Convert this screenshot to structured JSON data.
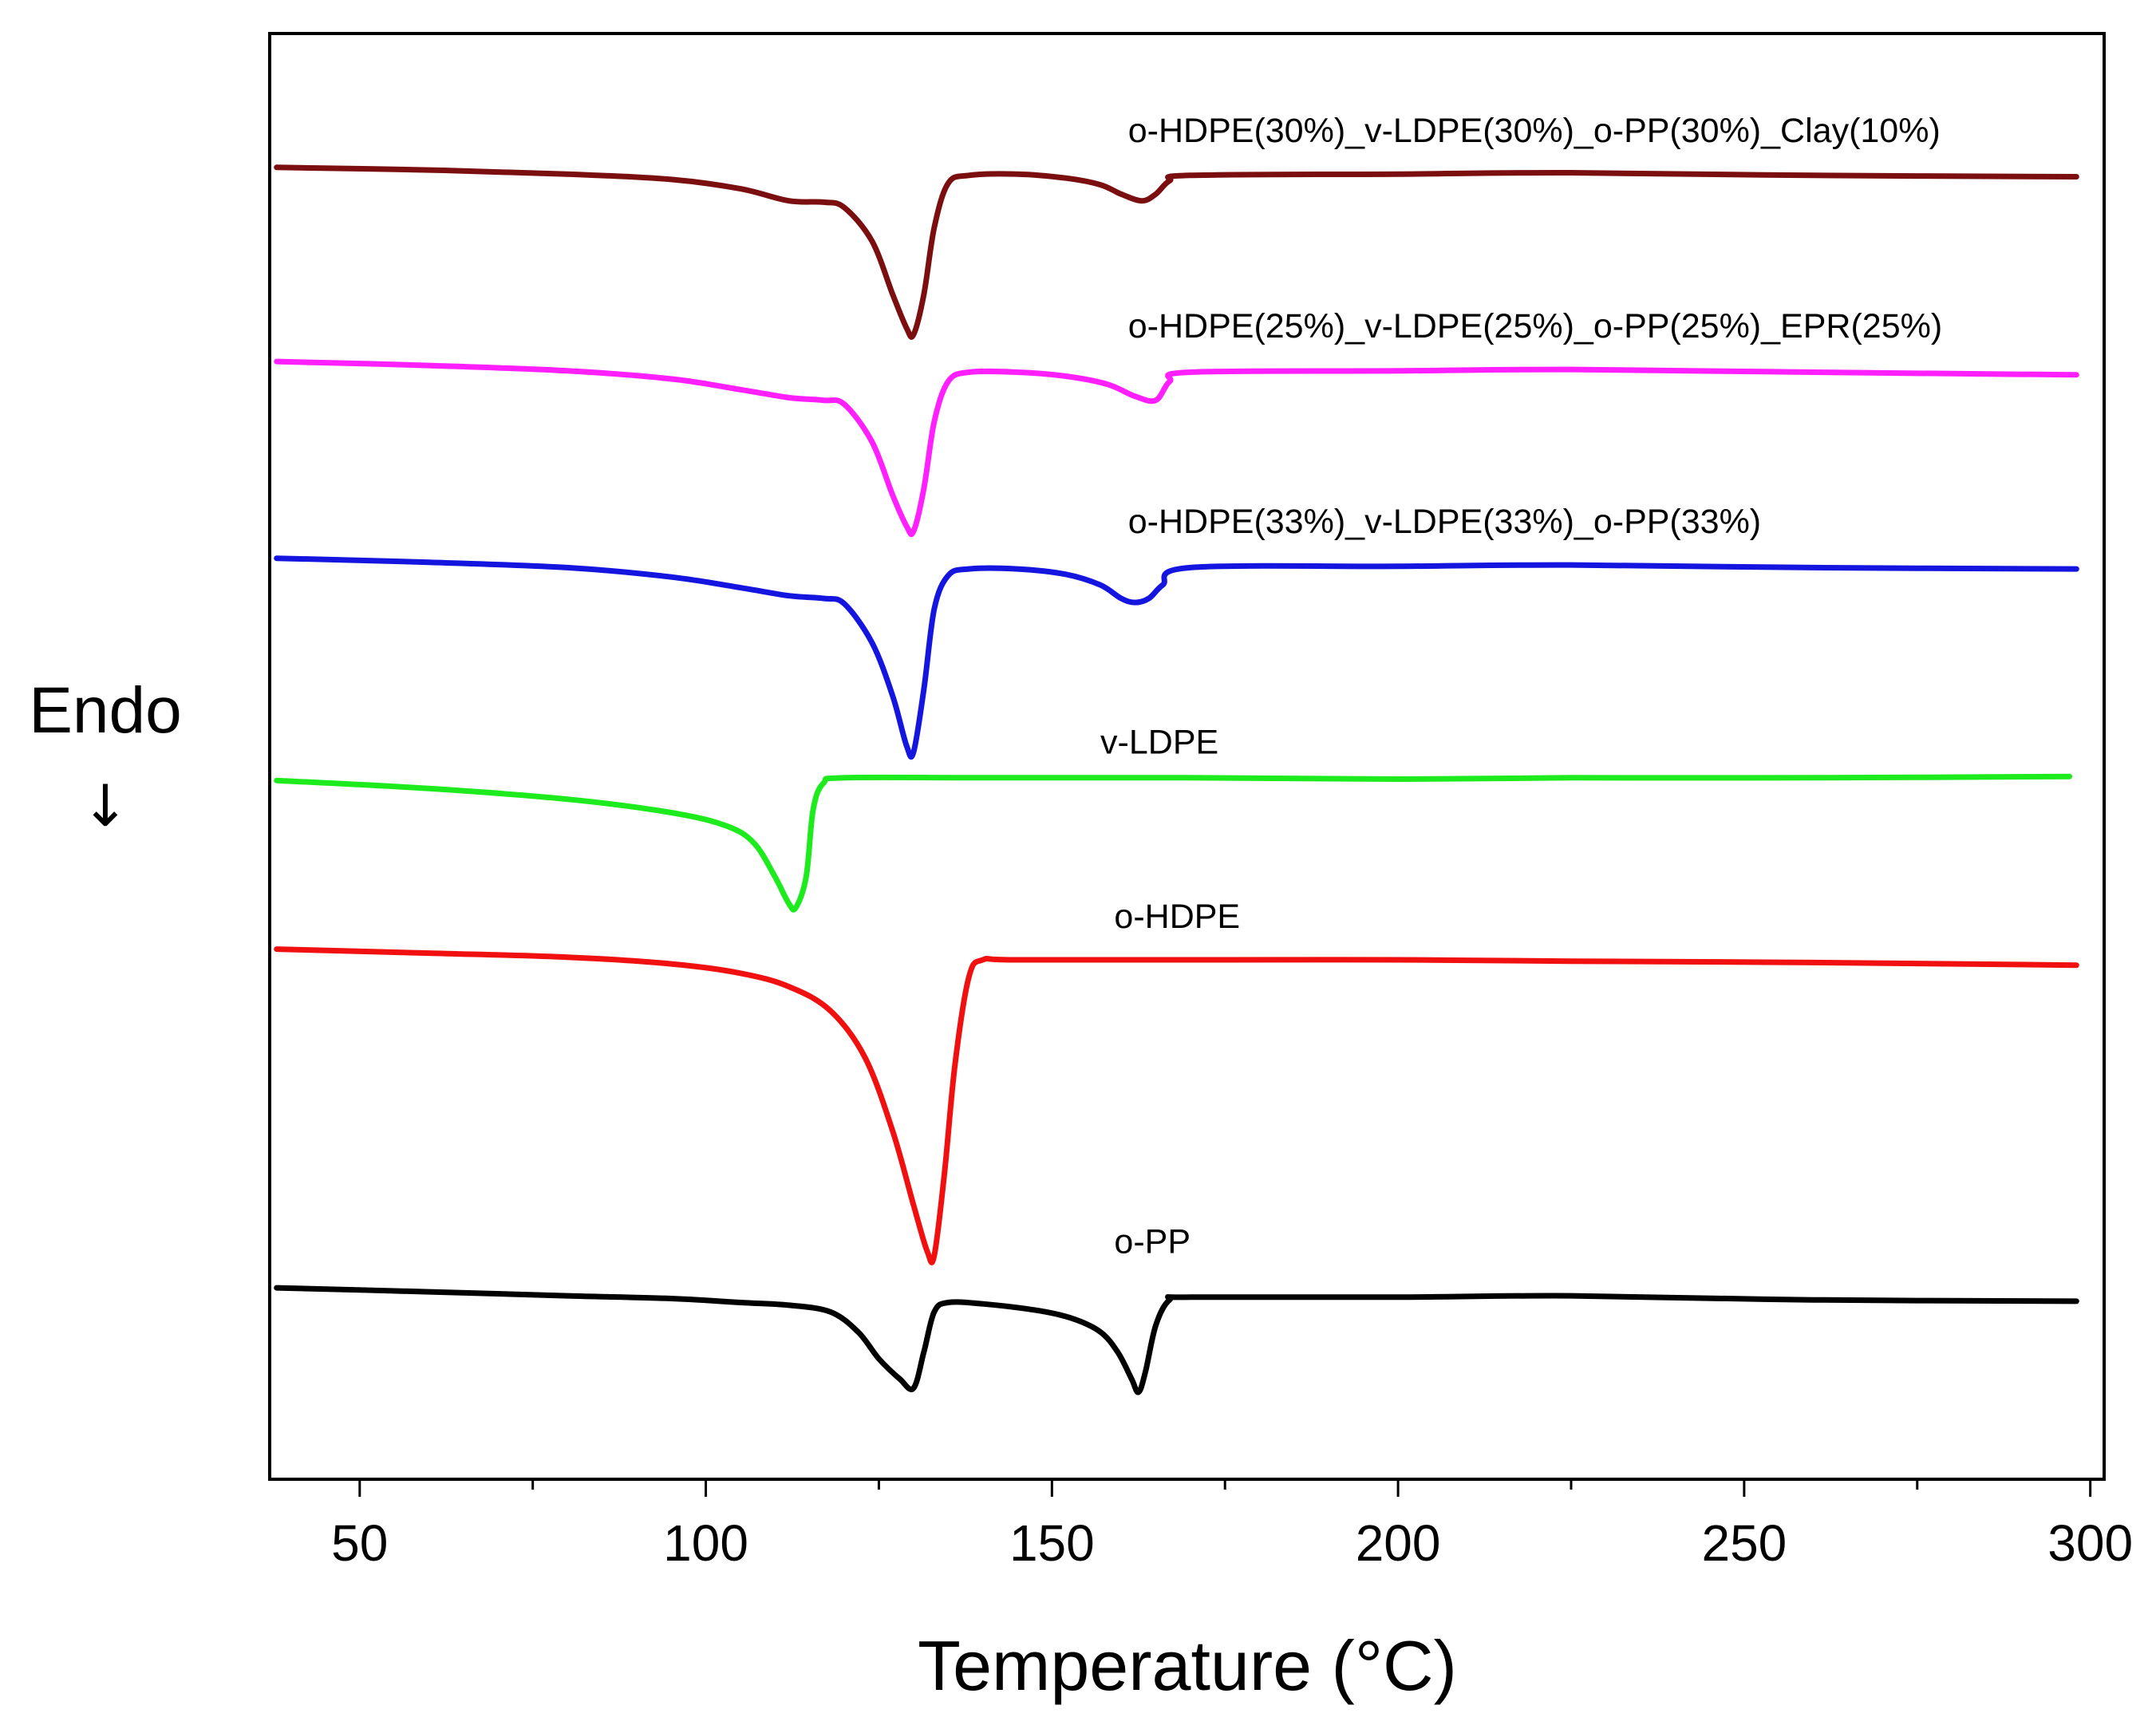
{
  "chart_data": {
    "type": "line",
    "title": "",
    "xlabel": "Temperature (°C)",
    "ylabel": "Endo",
    "ylabel_arrow": "↓",
    "xlim": [
      37,
      302
    ],
    "ylim": [
      -9.8,
      1.0
    ],
    "xticks": [
      50,
      100,
      150,
      200,
      250,
      300
    ],
    "xtick_labels": [
      "50",
      "100",
      "150",
      "200",
      "250",
      "300"
    ],
    "minor_xticks": [
      75,
      125,
      175,
      225,
      275
    ],
    "grid": false,
    "legend": "inline labels above each curve",
    "y_axis_ticks_visible": false,
    "series": [
      {
        "name": "o-HDPE(30%)_v-LDPE(30%)_o-PP(30%)_Clay(10%)",
        "color": "#7B0F0F",
        "label_at": [
          161,
          0.19
        ],
        "points": [
          [
            38,
            0
          ],
          [
            60,
            -0.02
          ],
          [
            80,
            -0.05
          ],
          [
            95,
            -0.09
          ],
          [
            105,
            -0.16
          ],
          [
            112,
            -0.25
          ],
          [
            117,
            -0.26
          ],
          [
            120,
            -0.3
          ],
          [
            124,
            -0.55
          ],
          [
            127,
            -0.95
          ],
          [
            129,
            -1.2
          ],
          [
            130,
            -1.25
          ],
          [
            131.5,
            -0.95
          ],
          [
            133,
            -0.45
          ],
          [
            135,
            -0.12
          ],
          [
            138,
            -0.06
          ],
          [
            145,
            -0.05
          ],
          [
            152,
            -0.08
          ],
          [
            157,
            -0.13
          ],
          [
            160,
            -0.2
          ],
          [
            163,
            -0.25
          ],
          [
            165,
            -0.2
          ],
          [
            167,
            -0.1
          ],
          [
            170,
            -0.06
          ],
          [
            200,
            -0.05
          ],
          [
            225,
            -0.04
          ],
          [
            260,
            -0.06
          ],
          [
            298,
            -0.07
          ]
        ]
      },
      {
        "name": "o-HDPE(25%)_v-LDPE(25%)_o-PP(25%)_EPR(25%)",
        "color": "#FF1FFF",
        "label_at": [
          161,
          -1.27
        ],
        "points": [
          [
            38,
            -1.45
          ],
          [
            60,
            -1.48
          ],
          [
            80,
            -1.52
          ],
          [
            95,
            -1.58
          ],
          [
            105,
            -1.66
          ],
          [
            112,
            -1.72
          ],
          [
            117,
            -1.74
          ],
          [
            120,
            -1.77
          ],
          [
            124,
            -2.05
          ],
          [
            127,
            -2.45
          ],
          [
            129,
            -2.68
          ],
          [
            130,
            -2.72
          ],
          [
            131.5,
            -2.4
          ],
          [
            133,
            -1.9
          ],
          [
            135,
            -1.6
          ],
          [
            138,
            -1.53
          ],
          [
            145,
            -1.53
          ],
          [
            152,
            -1.56
          ],
          [
            158,
            -1.62
          ],
          [
            162,
            -1.71
          ],
          [
            165,
            -1.74
          ],
          [
            167,
            -1.6
          ],
          [
            170,
            -1.53
          ],
          [
            200,
            -1.52
          ],
          [
            225,
            -1.51
          ],
          [
            260,
            -1.53
          ],
          [
            298,
            -1.55
          ]
        ]
      },
      {
        "name": "o-HDPE(33%)_v-LDPE(33%)_o-PP(33%)",
        "color": "#1515E0",
        "label_at": [
          161,
          -2.73
        ],
        "points": [
          [
            38,
            -2.92
          ],
          [
            60,
            -2.95
          ],
          [
            80,
            -2.99
          ],
          [
            95,
            -3.06
          ],
          [
            105,
            -3.14
          ],
          [
            112,
            -3.2
          ],
          [
            117,
            -3.22
          ],
          [
            120,
            -3.26
          ],
          [
            124,
            -3.55
          ],
          [
            127,
            -3.95
          ],
          [
            129,
            -4.32
          ],
          [
            130,
            -4.37
          ],
          [
            131.5,
            -3.9
          ],
          [
            133,
            -3.3
          ],
          [
            135,
            -3.05
          ],
          [
            138,
            -3.0
          ],
          [
            145,
            -3.0
          ],
          [
            152,
            -3.04
          ],
          [
            157,
            -3.12
          ],
          [
            160,
            -3.22
          ],
          [
            162,
            -3.25
          ],
          [
            164,
            -3.22
          ],
          [
            166,
            -3.12
          ],
          [
            170,
            -2.99
          ],
          [
            200,
            -2.98
          ],
          [
            225,
            -2.97
          ],
          [
            260,
            -2.99
          ],
          [
            298,
            -3.0
          ]
        ]
      },
      {
        "name": "v-LDPE",
        "color": "#1EEB1E",
        "label_at": [
          157,
          -4.38
        ],
        "points": [
          [
            38,
            -4.58
          ],
          [
            60,
            -4.64
          ],
          [
            80,
            -4.72
          ],
          [
            95,
            -4.82
          ],
          [
            103,
            -4.92
          ],
          [
            107,
            -5.05
          ],
          [
            110,
            -5.3
          ],
          [
            112,
            -5.5
          ],
          [
            113,
            -5.53
          ],
          [
            114.5,
            -5.3
          ],
          [
            115.5,
            -4.8
          ],
          [
            117,
            -4.6
          ],
          [
            120,
            -4.56
          ],
          [
            140,
            -4.56
          ],
          [
            170,
            -4.56
          ],
          [
            200,
            -4.57
          ],
          [
            225,
            -4.56
          ],
          [
            260,
            -4.56
          ],
          [
            297,
            -4.55
          ]
        ]
      },
      {
        "name": "o-HDPE",
        "color": "#F01010",
        "label_at": [
          159,
          -5.68
        ],
        "points": [
          [
            38,
            -5.84
          ],
          [
            60,
            -5.87
          ],
          [
            80,
            -5.9
          ],
          [
            95,
            -5.95
          ],
          [
            105,
            -6.02
          ],
          [
            112,
            -6.12
          ],
          [
            118,
            -6.3
          ],
          [
            123,
            -6.65
          ],
          [
            127,
            -7.2
          ],
          [
            130,
            -7.75
          ],
          [
            132,
            -8.1
          ],
          [
            133,
            -8.13
          ],
          [
            134.5,
            -7.5
          ],
          [
            136,
            -6.7
          ],
          [
            138,
            -6.05
          ],
          [
            140,
            -5.92
          ],
          [
            145,
            -5.92
          ],
          [
            175,
            -5.92
          ],
          [
            200,
            -5.92
          ],
          [
            225,
            -5.93
          ],
          [
            260,
            -5.94
          ],
          [
            298,
            -5.96
          ]
        ]
      },
      {
        "name": "o-PP",
        "color": "#000000",
        "label_at": [
          159,
          -8.11
        ],
        "points": [
          [
            38,
            -8.37
          ],
          [
            60,
            -8.4
          ],
          [
            80,
            -8.43
          ],
          [
            95,
            -8.45
          ],
          [
            105,
            -8.48
          ],
          [
            112,
            -8.5
          ],
          [
            118,
            -8.55
          ],
          [
            122,
            -8.7
          ],
          [
            125,
            -8.9
          ],
          [
            128,
            -9.05
          ],
          [
            130,
            -9.12
          ],
          [
            131.5,
            -8.85
          ],
          [
            133,
            -8.55
          ],
          [
            135,
            -8.48
          ],
          [
            140,
            -8.49
          ],
          [
            148,
            -8.54
          ],
          [
            153,
            -8.6
          ],
          [
            157,
            -8.7
          ],
          [
            159.5,
            -8.85
          ],
          [
            161.5,
            -9.05
          ],
          [
            162.5,
            -9.15
          ],
          [
            163.5,
            -9.0
          ],
          [
            165,
            -8.65
          ],
          [
            167,
            -8.46
          ],
          [
            170,
            -8.44
          ],
          [
            200,
            -8.44
          ],
          [
            225,
            -8.43
          ],
          [
            260,
            -8.46
          ],
          [
            298,
            -8.47
          ]
        ]
      }
    ]
  }
}
